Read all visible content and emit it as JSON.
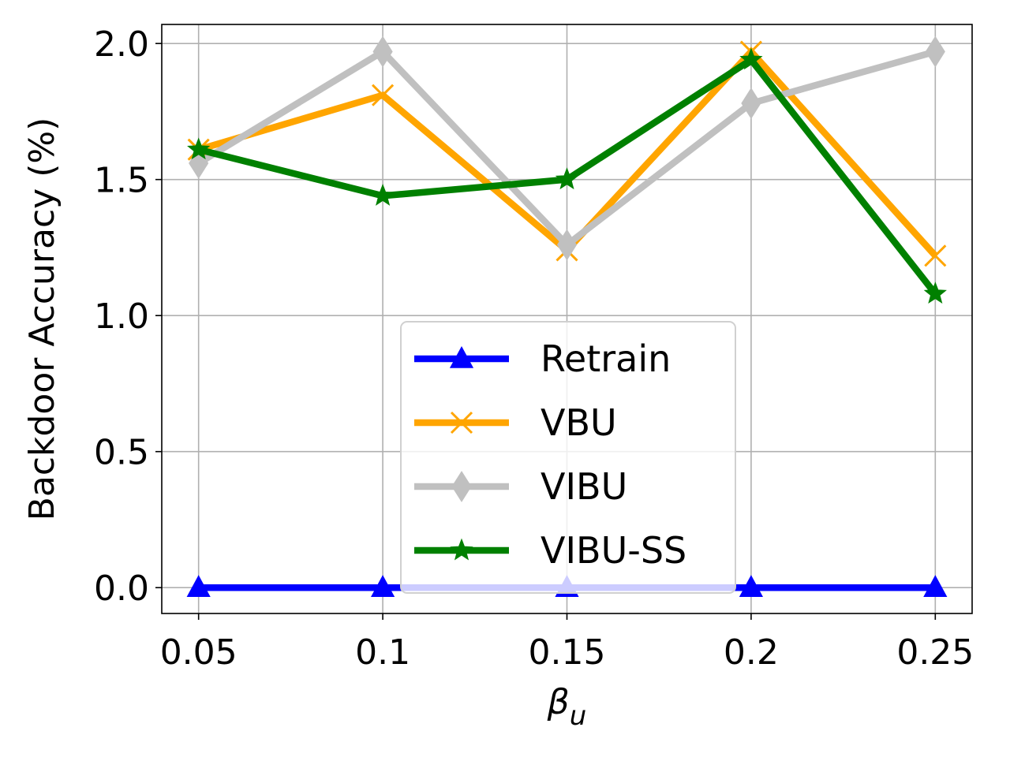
{
  "chart_data": {
    "type": "line",
    "xlabel": "β",
    "xlabel_sub": "u",
    "ylabel": "Backdoor Accuracy (%)",
    "x": [
      0.05,
      0.1,
      0.15,
      0.2,
      0.25
    ],
    "x_tick_labels": [
      "0.05",
      "0.1",
      "0.15",
      "0.2",
      "0.25"
    ],
    "y_ticks": [
      0.0,
      0.5,
      1.0,
      1.5,
      2.0
    ],
    "y_tick_labels": [
      "0.0",
      "0.5",
      "1.0",
      "1.5",
      "2.0"
    ],
    "xlim": [
      0.04,
      0.26
    ],
    "ylim": [
      -0.095,
      2.07
    ],
    "grid": true,
    "legend_position": "lower-center",
    "series": [
      {
        "name": "Retrain",
        "color": "#0000ff",
        "marker": "triangle",
        "values": [
          0.0,
          0.0,
          0.0,
          0.0,
          0.0
        ]
      },
      {
        "name": "VBU",
        "color": "#ffa500",
        "marker": "x",
        "values": [
          1.61,
          1.81,
          1.24,
          1.97,
          1.22
        ]
      },
      {
        "name": "VIBU",
        "color": "#c0c0c0",
        "marker": "diamond",
        "values": [
          1.56,
          1.97,
          1.26,
          1.78,
          1.97
        ]
      },
      {
        "name": "VIBU-SS",
        "color": "#008000",
        "marker": "star",
        "values": [
          1.61,
          1.44,
          1.5,
          1.94,
          1.08
        ]
      }
    ]
  }
}
